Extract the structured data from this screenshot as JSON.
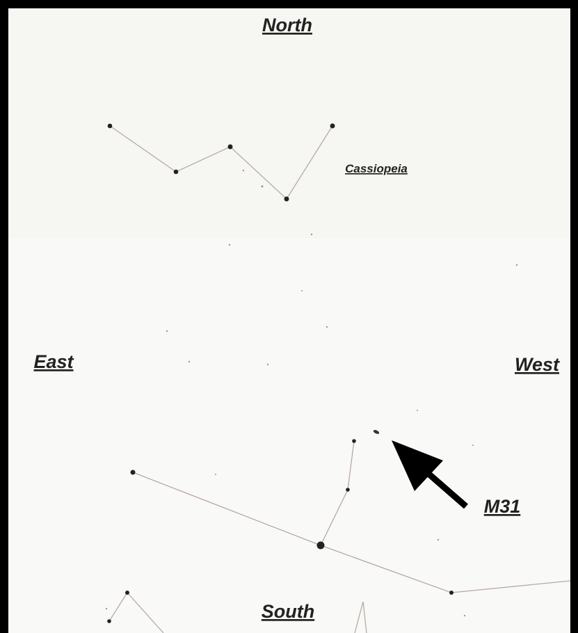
{
  "labels": {
    "north": "North",
    "south": "South",
    "east": "East",
    "west": "West",
    "constellation": "Cassiopeia",
    "target": "M31"
  }
}
